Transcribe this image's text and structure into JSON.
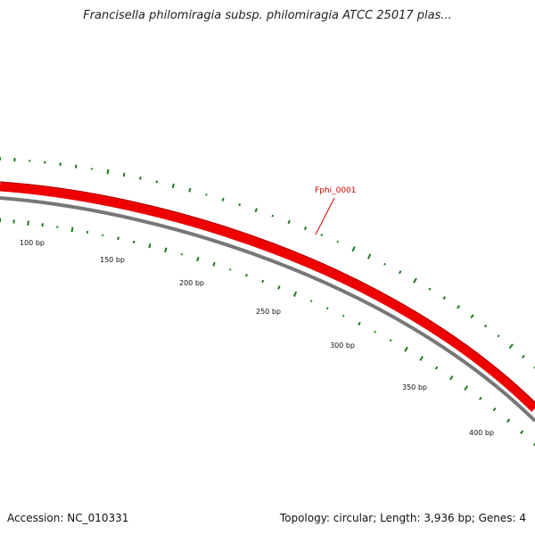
{
  "title": "Francisella philomiragia subsp. philomiragia ATCC 25017 plas...",
  "accession_label": "Accession: NC_010331",
  "summary_label": "Topology: circular; Length: 3,936 bp; Genes: 4",
  "colors": {
    "gene_band": "#ee0000",
    "backbone": "#777777",
    "tick": "#1a7a1a",
    "label": "#cc0000"
  },
  "gene": {
    "name": "Fphi_0001"
  },
  "scale_labels": [
    "100 bp",
    "150 bp",
    "200 bp",
    "250 bp",
    "300 bp",
    "350 bp",
    "400 bp"
  ]
}
